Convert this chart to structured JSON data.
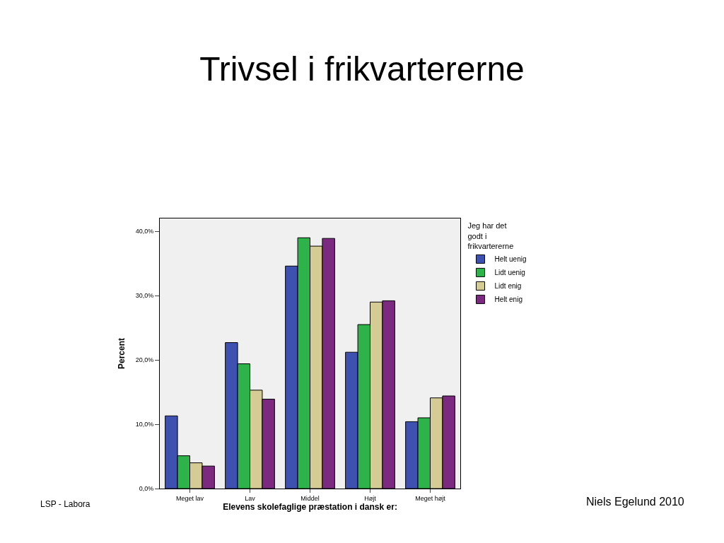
{
  "chart_data": {
    "type": "bar",
    "title": "Trivsel i frikvartererne",
    "categories": [
      "Meget lav",
      "Lav",
      "Middel",
      "Højt",
      "Meget højt"
    ],
    "xlabel": "Elevens skolefaglige præstation i dansk er:",
    "ylabel": "Percent",
    "legend_title": "Jeg har det godt i frikvartererne",
    "series": [
      {
        "name": "Helt uenig",
        "color": "#3f51b0",
        "values": [
          11.3,
          22.7,
          34.6,
          21.2,
          10.4
        ]
      },
      {
        "name": "Lidt uenig",
        "color": "#2db34a",
        "values": [
          5.1,
          19.4,
          39.0,
          25.5,
          11.0
        ]
      },
      {
        "name": "Lidt enig",
        "color": "#d4cc94",
        "values": [
          4.0,
          15.3,
          37.7,
          29.0,
          14.1
        ]
      },
      {
        "name": "Helt enig",
        "color": "#7b2a80",
        "values": [
          3.5,
          13.9,
          38.9,
          29.2,
          14.4
        ]
      }
    ],
    "ylim": [
      0,
      42
    ],
    "yticks": [
      {
        "value": 0,
        "label": "0,0%"
      },
      {
        "value": 10,
        "label": "10,0%"
      },
      {
        "value": 20,
        "label": "20,0%"
      },
      {
        "value": 30,
        "label": "30,0%"
      },
      {
        "value": 40,
        "label": "40,0%"
      }
    ],
    "grid": false,
    "legend": "top right",
    "annotations": [
      "LSP - Labora",
      "Niels Egelund 2010"
    ]
  }
}
